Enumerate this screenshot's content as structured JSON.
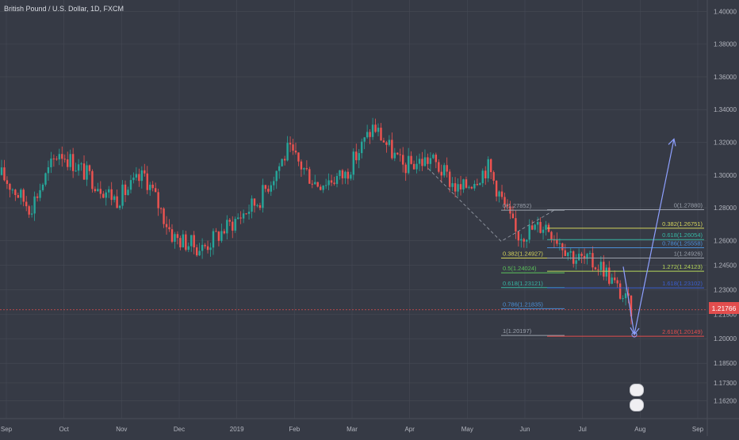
{
  "header": {
    "title": "British Pound / U.S. Dollar, 1D, FXCM"
  },
  "current_price": "1.21766",
  "y_axis": {
    "min": 1.157,
    "max": 1.405,
    "ticks": [
      "1.40000",
      "1.38000",
      "1.36000",
      "1.34000",
      "1.32000",
      "1.30000",
      "1.28000",
      "1.26000",
      "1.24500",
      "1.23000",
      "1.21500",
      "1.20000",
      "1.18500",
      "1.17300",
      "1.16200"
    ]
  },
  "x_axis": {
    "labels": [
      "Sep",
      "Oct",
      "Nov",
      "Dec",
      "2019",
      "Feb",
      "Mar",
      "Apr",
      "May",
      "Jun",
      "Jul",
      "Aug",
      "Sep"
    ]
  },
  "fib_left": [
    {
      "label": "0(1.27852)",
      "price": 1.27852,
      "color": "#9aa0ab"
    },
    {
      "label": "0.382(1.24927)",
      "price": 1.24927,
      "color": "#d4d35a"
    },
    {
      "label": "0.5(1.24024)",
      "price": 1.24024,
      "color": "#5cc45c"
    },
    {
      "label": "0.618(1.23121)",
      "price": 1.23121,
      "color": "#36b5a2"
    },
    {
      "label": "0.786(1.21835)",
      "price": 1.21835,
      "color": "#4b8fd6"
    },
    {
      "label": "1(1.20197)",
      "price": 1.20197,
      "color": "#9aa0ab"
    }
  ],
  "fib_right": [
    {
      "label": "0(1.27880)",
      "price": 1.2788,
      "color": "#9aa0ab"
    },
    {
      "label": "0.382(1.26751)",
      "price": 1.26751,
      "color": "#d4d35a"
    },
    {
      "label": "0.618(1.26054)",
      "price": 1.26054,
      "color": "#36b5a2"
    },
    {
      "label": "0.786(1.25558)",
      "price": 1.25558,
      "color": "#4b8fd6"
    },
    {
      "label": "1(1.24926)",
      "price": 1.24926,
      "color": "#9aa0ab"
    },
    {
      "label": "1.272(1.24123)",
      "price": 1.24123,
      "color": "#b6d85a"
    },
    {
      "label": "1.618(1.23102)",
      "price": 1.23102,
      "color": "#3a5ecf"
    },
    {
      "label": "2.618(1.20149)",
      "price": 1.20149,
      "color": "#e24d4d"
    }
  ],
  "projection": {
    "down_end": 1.2025,
    "up_end": 1.322
  },
  "chart_data": {
    "type": "candlestick",
    "title": "British Pound / U.S. Dollar, 1D, FXCM",
    "ylim": [
      1.157,
      1.405
    ],
    "close_path": [
      {
        "x": "Sep",
        "y": 1.3
      },
      {
        "x": "Sep",
        "y": 1.28
      },
      {
        "x": "Oct",
        "y": 1.315
      },
      {
        "x": "Oct",
        "y": 1.3
      },
      {
        "x": "Nov",
        "y": 1.285
      },
      {
        "x": "Nov",
        "y": 1.3
      },
      {
        "x": "Dec",
        "y": 1.262
      },
      {
        "x": "Dec",
        "y": 1.255
      },
      {
        "x": "2019",
        "y": 1.27
      },
      {
        "x": "2019",
        "y": 1.285
      },
      {
        "x": "Feb",
        "y": 1.315
      },
      {
        "x": "Feb",
        "y": 1.295
      },
      {
        "x": "Mar",
        "y": 1.3
      },
      {
        "x": "Mar",
        "y": 1.33
      },
      {
        "x": "Apr",
        "y": 1.305
      },
      {
        "x": "Apr",
        "y": 1.31
      },
      {
        "x": "May",
        "y": 1.29
      },
      {
        "x": "May",
        "y": 1.305
      },
      {
        "x": "Jun",
        "y": 1.263
      },
      {
        "x": "Jun",
        "y": 1.27
      },
      {
        "x": "Jul",
        "y": 1.25
      },
      {
        "x": "Jul",
        "y": 1.244
      },
      {
        "x": "Aug",
        "y": 1.218
      }
    ]
  },
  "colors": {
    "up": "#26a69a",
    "down": "#ef5350",
    "grid": "#464a55",
    "bg": "#363a45"
  }
}
